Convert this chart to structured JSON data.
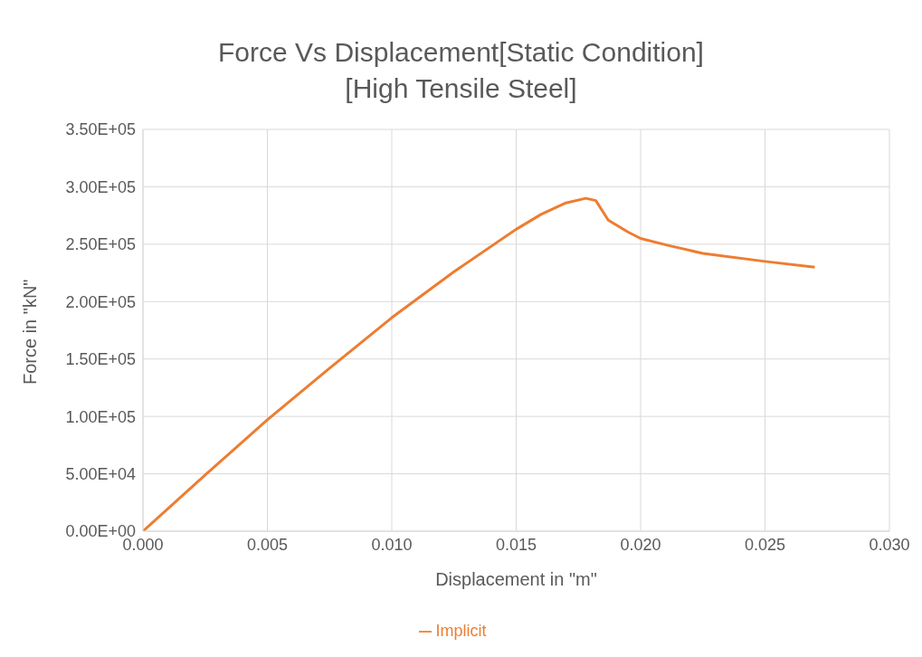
{
  "chart_data": {
    "type": "line",
    "title": "Force Vs Displacement[Static Condition]",
    "subtitle": "[High Tensile Steel]",
    "xlabel": "Displacement in \"m\"",
    "ylabel": "Force in \"kN\"",
    "xlim": [
      0,
      0.03
    ],
    "xticks": [
      {
        "value": 0,
        "label": "0.000"
      },
      {
        "value": 0.005,
        "label": "0.005"
      },
      {
        "value": 0.01,
        "label": "0.010"
      },
      {
        "value": 0.015,
        "label": "0.015"
      },
      {
        "value": 0.02,
        "label": "0.020"
      },
      {
        "value": 0.025,
        "label": "0.025"
      },
      {
        "value": 0.03,
        "label": "0.030"
      }
    ],
    "ylim": [
      0,
      350000
    ],
    "yticks": [
      {
        "value": 0,
        "label": "0.00E+00"
      },
      {
        "value": 50000,
        "label": "5.00E+04"
      },
      {
        "value": 100000,
        "label": "1.00E+05"
      },
      {
        "value": 150000,
        "label": "1.50E+05"
      },
      {
        "value": 200000,
        "label": "2.00E+05"
      },
      {
        "value": 250000,
        "label": "2.50E+05"
      },
      {
        "value": 300000,
        "label": "3.00E+05"
      },
      {
        "value": 350000,
        "label": "3.50E+05"
      }
    ],
    "grid": true,
    "legend": "bottom",
    "marker": "none",
    "line_style": "solid",
    "series": [
      {
        "name": "Implicit",
        "color": "#ed7d31",
        "x": [
          0,
          0.0025,
          0.005,
          0.0075,
          0.01,
          0.0125,
          0.015,
          0.016,
          0.017,
          0.0178,
          0.0182,
          0.0187,
          0.0195,
          0.02,
          0.0211,
          0.0225,
          0.025,
          0.027
        ],
        "values": [
          0,
          49000,
          97000,
          142000,
          186000,
          226000,
          263000,
          276000,
          286000,
          290000,
          288000,
          271000,
          260500,
          255000,
          249000,
          242000,
          235000,
          230000
        ]
      }
    ]
  }
}
